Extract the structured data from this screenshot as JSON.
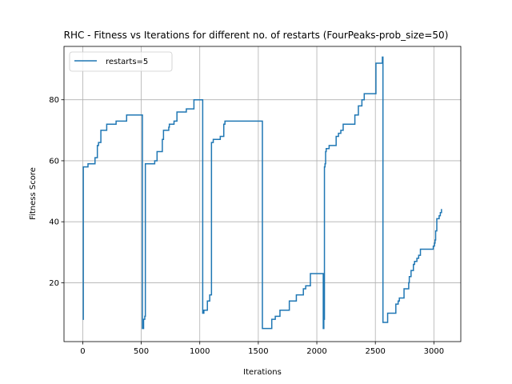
{
  "chart_data": {
    "type": "line",
    "title": "RHC - Fitness vs Iterations for different no. of restarts (FourPeaks-prob_size=50)",
    "xlabel": "Iterations",
    "ylabel": "Fitness Score",
    "xlim": [
      -160,
      3230
    ],
    "ylim": [
      0.7,
      97.5
    ],
    "xticks": [
      0,
      500,
      1000,
      1500,
      2000,
      2500,
      3000
    ],
    "yticks": [
      20,
      40,
      60,
      80
    ],
    "grid": true,
    "legend_position": "upper-left",
    "series": [
      {
        "name": "restarts=5",
        "color": "#1f77b4",
        "step_points": [
          [
            0,
            8
          ],
          [
            5,
            58
          ],
          [
            40,
            58
          ],
          [
            45,
            59
          ],
          [
            100,
            59
          ],
          [
            105,
            61
          ],
          [
            120,
            61
          ],
          [
            125,
            65
          ],
          [
            135,
            66
          ],
          [
            150,
            66
          ],
          [
            155,
            70
          ],
          [
            200,
            70
          ],
          [
            205,
            72
          ],
          [
            280,
            72
          ],
          [
            285,
            73
          ],
          [
            370,
            73
          ],
          [
            375,
            75
          ],
          [
            500,
            75
          ],
          [
            510,
            5
          ],
          [
            520,
            8
          ],
          [
            530,
            9
          ],
          [
            535,
            59
          ],
          [
            610,
            59
          ],
          [
            615,
            60
          ],
          [
            630,
            60
          ],
          [
            635,
            63
          ],
          [
            670,
            63
          ],
          [
            680,
            67
          ],
          [
            690,
            70
          ],
          [
            730,
            70
          ],
          [
            735,
            71
          ],
          [
            740,
            72
          ],
          [
            775,
            72
          ],
          [
            780,
            73
          ],
          [
            800,
            73
          ],
          [
            805,
            76
          ],
          [
            880,
            76
          ],
          [
            885,
            77
          ],
          [
            940,
            77
          ],
          [
            950,
            80
          ],
          [
            1020,
            80
          ],
          [
            1025,
            10
          ],
          [
            1035,
            11
          ],
          [
            1060,
            11
          ],
          [
            1065,
            14
          ],
          [
            1080,
            14
          ],
          [
            1085,
            16
          ],
          [
            1095,
            16
          ],
          [
            1100,
            66
          ],
          [
            1110,
            66
          ],
          [
            1115,
            67
          ],
          [
            1170,
            67
          ],
          [
            1175,
            68
          ],
          [
            1200,
            68
          ],
          [
            1205,
            72
          ],
          [
            1215,
            73
          ],
          [
            1530,
            73
          ],
          [
            1535,
            5
          ],
          [
            1610,
            5
          ],
          [
            1615,
            8
          ],
          [
            1640,
            8
          ],
          [
            1645,
            9
          ],
          [
            1680,
            9
          ],
          [
            1685,
            11
          ],
          [
            1760,
            11
          ],
          [
            1765,
            14
          ],
          [
            1820,
            14
          ],
          [
            1825,
            16
          ],
          [
            1880,
            16
          ],
          [
            1885,
            18
          ],
          [
            1900,
            18
          ],
          [
            1905,
            19
          ],
          [
            1940,
            19
          ],
          [
            1945,
            23
          ],
          [
            2050,
            23
          ],
          [
            2055,
            5
          ],
          [
            2060,
            8
          ],
          [
            2065,
            58
          ],
          [
            2070,
            59
          ],
          [
            2075,
            63
          ],
          [
            2080,
            64
          ],
          [
            2100,
            64
          ],
          [
            2105,
            65
          ],
          [
            2160,
            65
          ],
          [
            2165,
            68
          ],
          [
            2180,
            68
          ],
          [
            2185,
            69
          ],
          [
            2200,
            69
          ],
          [
            2205,
            70
          ],
          [
            2220,
            70
          ],
          [
            2225,
            72
          ],
          [
            2320,
            72
          ],
          [
            2325,
            75
          ],
          [
            2350,
            75
          ],
          [
            2355,
            78
          ],
          [
            2380,
            78
          ],
          [
            2385,
            80
          ],
          [
            2400,
            80
          ],
          [
            2405,
            82
          ],
          [
            2500,
            82
          ],
          [
            2505,
            92
          ],
          [
            2555,
            92
          ],
          [
            2560,
            94
          ],
          [
            2565,
            7
          ],
          [
            2600,
            7
          ],
          [
            2605,
            10
          ],
          [
            2670,
            10
          ],
          [
            2675,
            13
          ],
          [
            2690,
            13
          ],
          [
            2695,
            14
          ],
          [
            2700,
            14
          ],
          [
            2705,
            15
          ],
          [
            2740,
            15
          ],
          [
            2745,
            18
          ],
          [
            2780,
            18
          ],
          [
            2785,
            20
          ],
          [
            2790,
            22
          ],
          [
            2800,
            22
          ],
          [
            2805,
            24
          ],
          [
            2820,
            24
          ],
          [
            2825,
            26
          ],
          [
            2830,
            26
          ],
          [
            2835,
            27
          ],
          [
            2850,
            27
          ],
          [
            2855,
            28
          ],
          [
            2865,
            28
          ],
          [
            2870,
            29
          ],
          [
            2880,
            29
          ],
          [
            2885,
            31
          ],
          [
            2990,
            31
          ],
          [
            2995,
            32
          ],
          [
            3000,
            32
          ],
          [
            3005,
            33
          ],
          [
            3010,
            34
          ],
          [
            3015,
            37
          ],
          [
            3020,
            37
          ],
          [
            3025,
            41
          ],
          [
            3040,
            41
          ],
          [
            3045,
            42
          ],
          [
            3050,
            42
          ],
          [
            3055,
            43
          ],
          [
            3060,
            43
          ],
          [
            3065,
            44
          ],
          [
            3070,
            44
          ]
        ]
      }
    ]
  }
}
